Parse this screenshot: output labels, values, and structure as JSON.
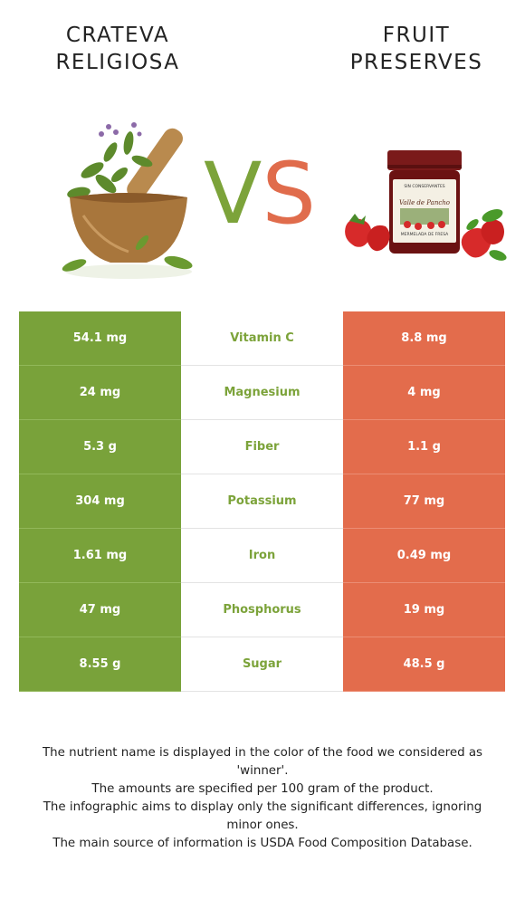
{
  "left_food": {
    "title": "CRATEVA RELIGIOSA",
    "color": "#7ca33a"
  },
  "right_food": {
    "title": "FRUIT PRESERVES",
    "color": "#e36c4c"
  },
  "vs": {
    "v": "V",
    "s": "S"
  },
  "rows": [
    {
      "nutrient": "Vitamin C",
      "left": "54.1 mg",
      "right": "8.8 mg",
      "winner": "left"
    },
    {
      "nutrient": "Magnesium",
      "left": "24 mg",
      "right": "4 mg",
      "winner": "left"
    },
    {
      "nutrient": "Fiber",
      "left": "5.3 g",
      "right": "1.1 g",
      "winner": "left"
    },
    {
      "nutrient": "Potassium",
      "left": "304 mg",
      "right": "77 mg",
      "winner": "left"
    },
    {
      "nutrient": "Iron",
      "left": "1.61 mg",
      "right": "0.49 mg",
      "winner": "left"
    },
    {
      "nutrient": "Phosphorus",
      "left": "47 mg",
      "right": "19 mg",
      "winner": "left"
    },
    {
      "nutrient": "Sugar",
      "left": "8.55 g",
      "right": "48.5 g",
      "winner": "left"
    }
  ],
  "notes": [
    "The nutrient name is displayed in the color of the food we considered as 'winner'.",
    "The amounts are specified per 100 gram of the product.",
    "The infographic aims to display only the significant differences, ignoring minor ones.",
    "The main source of information is USDA Food Composition Database."
  ],
  "jar_label": "Valle de Pancho",
  "jar_subtitle": "MERMELADA DE FRESA",
  "jar_top_text": "SIN CONSERVANTES"
}
